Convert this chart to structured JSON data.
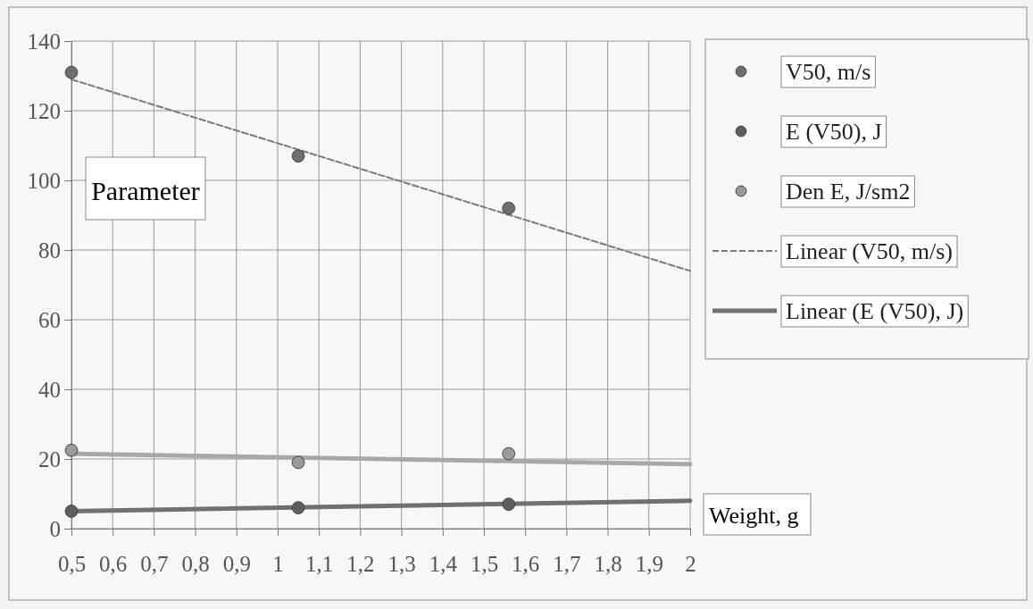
{
  "chart_data": {
    "type": "scatter",
    "xlabel": "Weight, g",
    "ylabel": "Parameter",
    "xlim": [
      0.5,
      2
    ],
    "ylim": [
      0,
      140
    ],
    "xticks": [
      {
        "value": 0.5,
        "label": "0,5"
      },
      {
        "value": 0.6,
        "label": "0,6"
      },
      {
        "value": 0.7,
        "label": "0,7"
      },
      {
        "value": 0.8,
        "label": "0,8"
      },
      {
        "value": 0.9,
        "label": "0,9"
      },
      1,
      {
        "value": 1.1,
        "label": "1,1"
      },
      {
        "value": 1.2,
        "label": "1,2"
      },
      {
        "value": 1.3,
        "label": "1,3"
      },
      {
        "value": 1.4,
        "label": "1,4"
      },
      {
        "value": 1.5,
        "label": "1,5"
      },
      {
        "value": 1.6,
        "label": "1,6"
      },
      {
        "value": 1.7,
        "label": "1,7"
      },
      {
        "value": 1.8,
        "label": "1,8"
      },
      {
        "value": 1.9,
        "label": "1,9"
      },
      2
    ],
    "yticks": [
      0,
      20,
      40,
      60,
      80,
      100,
      120,
      140
    ],
    "grid": true,
    "legend": "right",
    "series": [
      {
        "name": "V50, m/s",
        "marker": "circle",
        "color": "#6e6e6e",
        "x": [
          0.5,
          1.05,
          1.56
        ],
        "values": [
          131,
          107,
          92
        ]
      },
      {
        "name": "E (V50), J",
        "marker": "circle",
        "color": "#5e5e5e",
        "x": [
          0.5,
          1.05,
          1.56
        ],
        "values": [
          5,
          6,
          7
        ]
      },
      {
        "name": "Den E, J/sm2",
        "marker": "circle",
        "color": "#9a9a9a",
        "x": [
          0.5,
          1.05,
          1.56
        ],
        "values": [
          22.5,
          19,
          21.5
        ]
      },
      {
        "name": "Linear (V50, m/s)",
        "type": "line",
        "line_style": "dashed",
        "color": "#7a7a7a",
        "x": [
          0.5,
          2
        ],
        "values": [
          129,
          74
        ]
      },
      {
        "name": "Linear (E (V50), J)",
        "type": "line",
        "line_style": "solid",
        "color": "#707070",
        "x": [
          0.5,
          2
        ],
        "values": [
          5,
          8
        ]
      },
      {
        "type": "line",
        "line_style": "dotted",
        "color": "#a8a8a8",
        "x": [
          0.5,
          2
        ],
        "values": [
          21.5,
          18.5
        ]
      }
    ]
  }
}
